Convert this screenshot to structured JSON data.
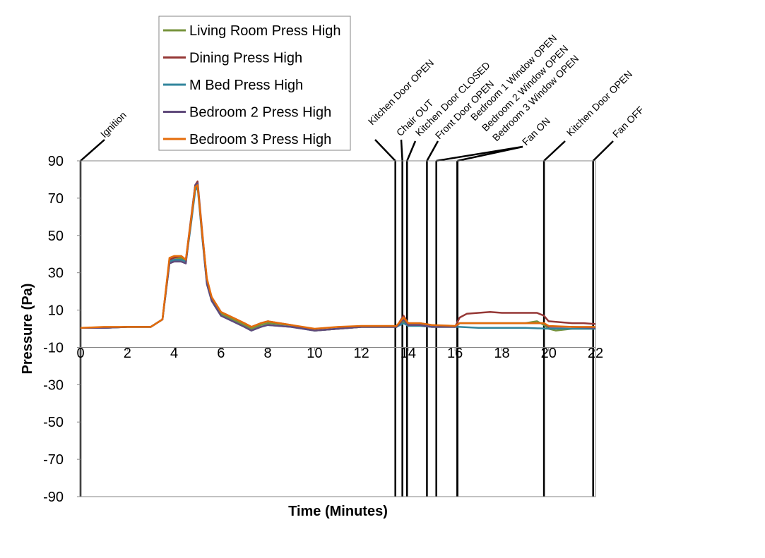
{
  "chart_data": {
    "type": "line",
    "title": "",
    "xlabel": "Time (Minutes)",
    "ylabel": "Pressure (Pa)",
    "xlim": [
      0,
      22
    ],
    "ylim": [
      -90,
      90
    ],
    "x_ticks": [
      "0",
      "2",
      "4",
      "6",
      "8",
      "10",
      "12",
      "14",
      "16",
      "18",
      "20",
      "22"
    ],
    "y_ticks": [
      "90",
      "70",
      "50",
      "30",
      "10",
      "-10",
      "-30",
      "-50",
      "-70",
      "-90"
    ],
    "grid": false,
    "legend_position": "top-left",
    "series": [
      {
        "name": "Living Room Press High",
        "color": "#77933c",
        "x": [
          0,
          1,
          2,
          3,
          3.5,
          3.8,
          4.0,
          4.3,
          4.5,
          4.7,
          4.9,
          5.0,
          5.2,
          5.4,
          5.6,
          6.0,
          6.5,
          7.0,
          7.3,
          7.7,
          8.0,
          9.0,
          10.0,
          11.0,
          12.0,
          13.0,
          13.5,
          13.8,
          14.0,
          14.5,
          15.0,
          16.0,
          16.2,
          17.0,
          18.0,
          19.0,
          19.5,
          19.8,
          20.0,
          20.3,
          21.0,
          22.0
        ],
        "y": [
          0.5,
          0.5,
          1,
          1,
          5,
          35,
          37,
          38,
          36,
          55,
          75,
          77,
          50,
          25,
          16,
          8,
          5,
          2,
          0,
          2,
          3,
          2,
          -1,
          0,
          1,
          1,
          1,
          4,
          2,
          2,
          1,
          1,
          3,
          3,
          3,
          3,
          4,
          2,
          0,
          -1,
          0,
          0
        ]
      },
      {
        "name": "Dining Press High",
        "color": "#953735",
        "x": [
          0,
          1,
          2,
          3,
          3.5,
          3.8,
          4.0,
          4.3,
          4.5,
          4.7,
          4.9,
          5.0,
          5.2,
          5.4,
          5.6,
          6.0,
          6.5,
          7.0,
          7.3,
          7.7,
          8.0,
          9.0,
          10.0,
          11.0,
          12.0,
          13.0,
          13.5,
          13.8,
          14.0,
          14.5,
          15.0,
          16.0,
          16.2,
          16.5,
          17.0,
          17.5,
          18.0,
          18.5,
          19.0,
          19.5,
          19.8,
          20.0,
          20.5,
          21.0,
          21.5,
          22.0
        ],
        "y": [
          0.5,
          0.5,
          1,
          1,
          5,
          37,
          38,
          39,
          37,
          57,
          77,
          79,
          52,
          26,
          17,
          9,
          6,
          3,
          1,
          3,
          4,
          2,
          -1,
          0,
          1,
          1,
          1,
          7,
          3,
          3,
          2,
          1,
          6,
          8,
          8.5,
          9,
          8.5,
          8.5,
          8.5,
          8.5,
          7,
          4,
          3.5,
          3,
          3,
          2.5
        ]
      },
      {
        "name": "M Bed Press High",
        "color": "#31859c",
        "x": [
          0,
          1,
          2,
          3,
          3.5,
          3.8,
          4.0,
          4.3,
          4.5,
          4.7,
          4.9,
          5.0,
          5.2,
          5.4,
          5.6,
          6.0,
          6.5,
          7.0,
          7.3,
          7.7,
          8.0,
          9.0,
          10.0,
          11.0,
          12.0,
          13.0,
          13.5,
          13.8,
          14.0,
          14.5,
          15.0,
          16.0,
          16.2,
          17.0,
          18.0,
          19.0,
          20.0,
          21.0,
          22.0
        ],
        "y": [
          0.5,
          0.5,
          1,
          1,
          5,
          36,
          37,
          37,
          36,
          54,
          74,
          76,
          49,
          24,
          15,
          7,
          4,
          1,
          -1,
          1,
          2,
          1,
          -1,
          0,
          1,
          1,
          1,
          3,
          1.5,
          1.5,
          1,
          1,
          1,
          0.5,
          0.5,
          0.5,
          0,
          0,
          0
        ]
      },
      {
        "name": "Bedroom 2 Press High",
        "color": "#604a7b",
        "x": [
          0,
          1,
          2,
          3,
          3.5,
          3.8,
          4.0,
          4.3,
          4.5,
          4.7,
          4.9,
          5.0,
          5.2,
          5.4,
          5.6,
          6.0,
          6.5,
          7.0,
          7.3,
          7.7,
          8.0,
          9.0,
          10.0,
          11.0,
          12.0,
          13.0,
          13.5,
          13.8,
          14.0,
          14.5,
          15.0,
          16.0,
          16.2,
          17.0,
          18.0,
          19.0,
          19.8,
          20.0,
          21.0,
          22.0
        ],
        "y": [
          0.5,
          0.5,
          1,
          1,
          5,
          35,
          36,
          36,
          35,
          56,
          77,
          78,
          50,
          24,
          15,
          7,
          4,
          1,
          -1,
          1,
          2,
          1,
          -1,
          0,
          1,
          1,
          1,
          5,
          2,
          2,
          1,
          1,
          3,
          3,
          3,
          3,
          3,
          1,
          1,
          0.5
        ]
      },
      {
        "name": "Bedroom 3 Press High",
        "color": "#e46c0a",
        "x": [
          0,
          1,
          2,
          3,
          3.5,
          3.8,
          4.0,
          4.3,
          4.5,
          4.7,
          4.9,
          5.0,
          5.2,
          5.4,
          5.6,
          6.0,
          6.5,
          7.0,
          7.3,
          7.7,
          8.0,
          9.0,
          10.0,
          11.0,
          12.0,
          13.0,
          13.5,
          13.8,
          14.0,
          14.5,
          15.0,
          16.0,
          16.2,
          17.0,
          18.0,
          19.0,
          19.8,
          20.0,
          21.0,
          22.0
        ],
        "y": [
          0.5,
          1,
          1,
          1,
          5,
          38,
          39,
          39,
          37,
          56,
          76,
          77,
          51,
          27,
          17,
          9,
          6,
          3,
          1,
          3,
          4,
          2,
          0,
          1,
          1.5,
          1.5,
          1.5,
          6,
          3,
          3,
          2,
          1.5,
          3,
          3,
          3,
          3,
          3,
          1.5,
          1,
          1
        ]
      }
    ],
    "annotations": [
      {
        "label": "Ignition",
        "x": 0
      },
      {
        "label": "Kitchen Door OPEN",
        "x": 13.45
      },
      {
        "label": "Chair OUT",
        "x": 13.75
      },
      {
        "label": "Kitchen Door CLOSED",
        "x": 13.95
      },
      {
        "label": "Front Door OPEN",
        "x": 14.8
      },
      {
        "label": "Bedroom 1 Window OPEN",
        "x": 15.2
      },
      {
        "label": "Bedroom 2 Window OPEN",
        "x": 16.1
      },
      {
        "label": "Bedroom 3 Window OPEN",
        "x": 16.1
      },
      {
        "label": "Fan ON",
        "x": 16.1
      },
      {
        "label": "Kitchen Door OPEN",
        "x": 19.8
      },
      {
        "label": "Fan OFF",
        "x": 21.9
      }
    ]
  }
}
